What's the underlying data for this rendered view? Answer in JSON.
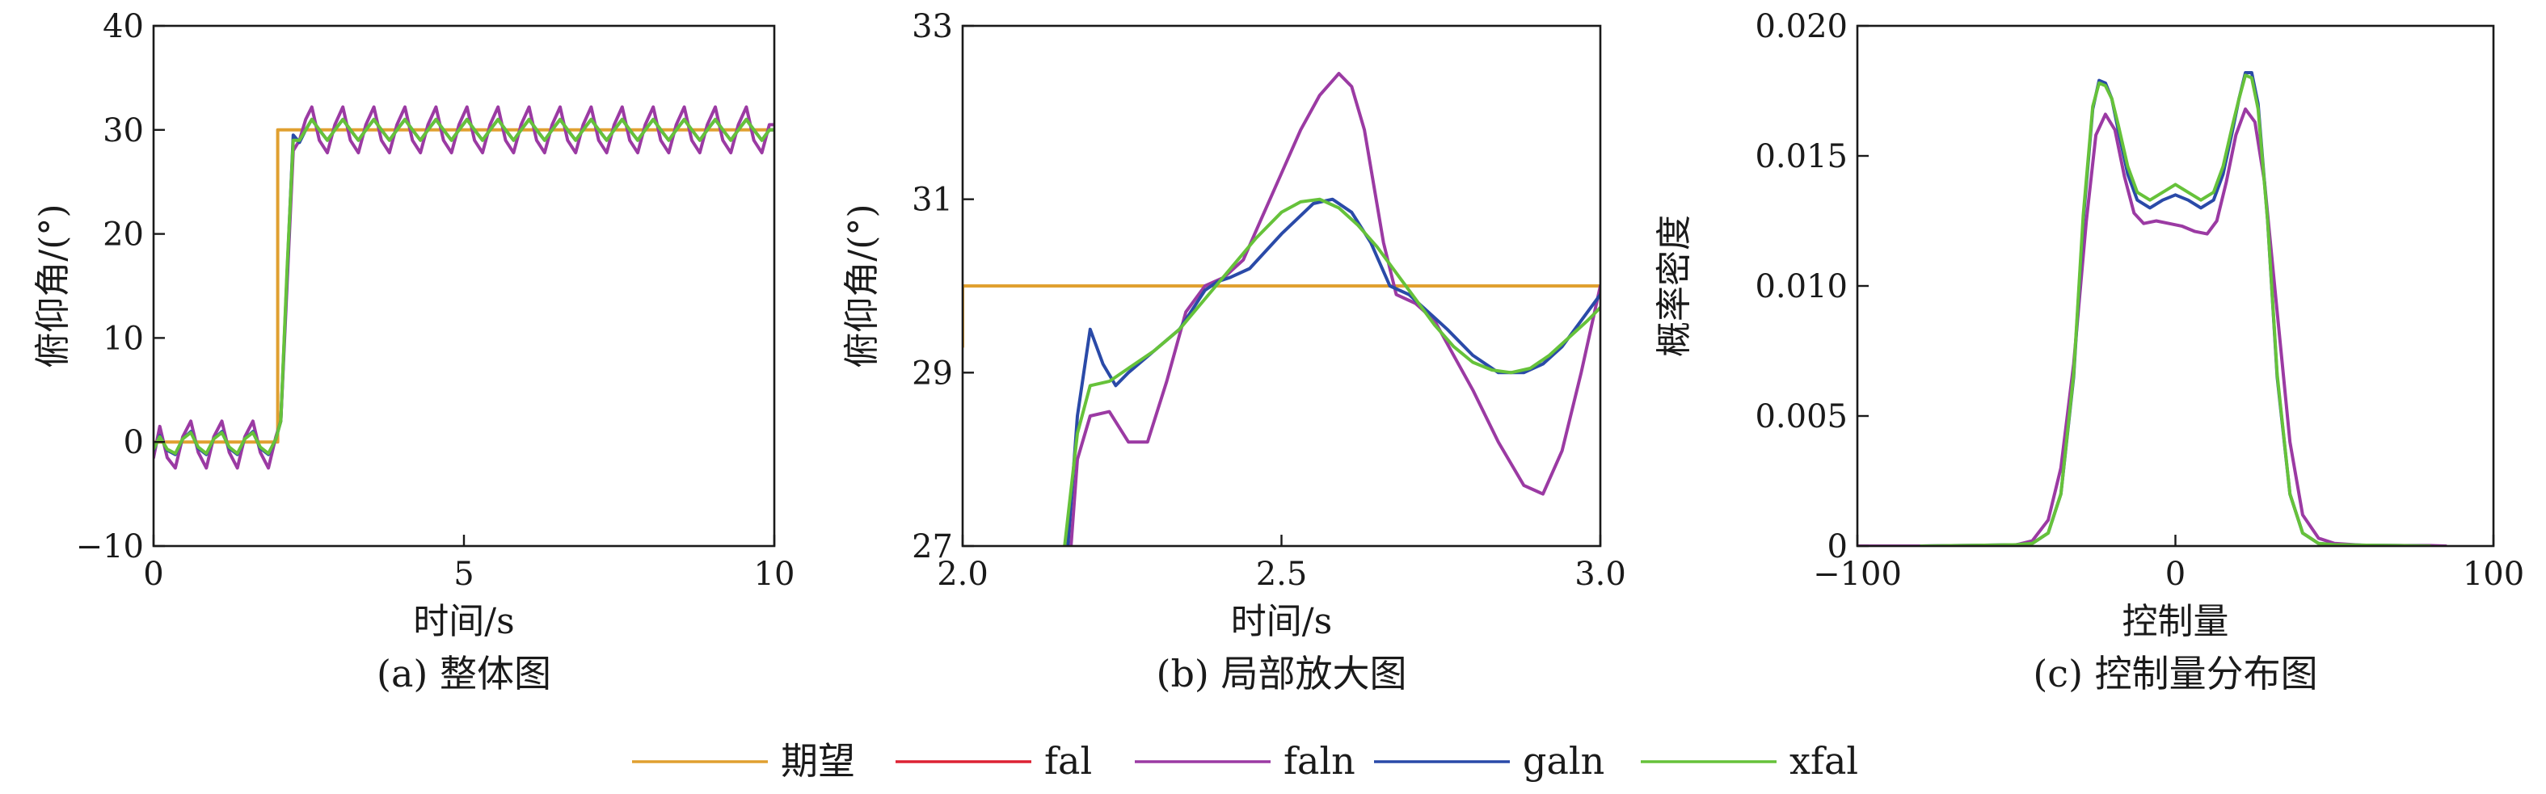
{
  "colors": {
    "期望": "#e0a030",
    "fal": "#dd2233",
    "faln": "#9b3aa3",
    "galn": "#2a4aa8",
    "xfal": "#66c23a"
  },
  "legend": {
    "placement": "bottom-center",
    "entries": [
      "期望",
      "fal",
      "faln",
      "galn",
      "xfal"
    ]
  },
  "chart_data": [
    {
      "id": "a",
      "type": "line",
      "caption": "(a) 整体图",
      "xlabel": "时间/s",
      "ylabel": "俯仰角/(°)",
      "xlim": [
        0,
        10
      ],
      "ylim": [
        -10,
        40
      ],
      "xticks": [
        0,
        5,
        10
      ],
      "yticks": [
        -10,
        0,
        10,
        20,
        30,
        40
      ],
      "xtick_labels": [
        "0",
        "5",
        "10"
      ],
      "ytick_labels": [
        "−10",
        "0",
        "10",
        "20",
        "30",
        "40"
      ],
      "series": [
        {
          "name": "期望",
          "x": [
            0,
            2,
            2,
            10
          ],
          "y": [
            0,
            0,
            30,
            30
          ]
        },
        {
          "name": "faln",
          "x": [
            0.0,
            0.1,
            0.22,
            0.35,
            0.47,
            0.6,
            0.72,
            0.85,
            0.97,
            1.1,
            1.22,
            1.35,
            1.47,
            1.6,
            1.72,
            1.85,
            1.97,
            2.05,
            2.15,
            2.25,
            2.35,
            2.45,
            2.55,
            2.67,
            2.8,
            2.92,
            3.05,
            3.17,
            3.3,
            3.42,
            3.55,
            3.67,
            3.8,
            3.92,
            4.05,
            4.17,
            4.3,
            4.42,
            4.55,
            4.67,
            4.8,
            4.92,
            5.05,
            5.17,
            5.3,
            5.42,
            5.55,
            5.67,
            5.8,
            5.92,
            6.05,
            6.17,
            6.3,
            6.42,
            6.55,
            6.67,
            6.8,
            6.92,
            7.05,
            7.17,
            7.3,
            7.42,
            7.55,
            7.67,
            7.8,
            7.92,
            8.05,
            8.17,
            8.3,
            8.42,
            8.55,
            8.67,
            8.8,
            8.92,
            9.05,
            9.17,
            9.3,
            9.42,
            9.55,
            9.67,
            9.8,
            9.92,
            10.0
          ],
          "y": [
            -1.5,
            1.5,
            -1.5,
            -2.5,
            0.5,
            2.0,
            -1.0,
            -2.5,
            0.5,
            2.0,
            -1.0,
            -2.5,
            0.5,
            2.0,
            -1.0,
            -2.5,
            0.5,
            2.0,
            15.0,
            28.0,
            29.0,
            31.0,
            32.2,
            29.0,
            27.8,
            30.5,
            32.2,
            29.0,
            27.8,
            30.5,
            32.2,
            29.0,
            27.8,
            30.5,
            32.2,
            29.0,
            27.8,
            30.5,
            32.2,
            29.0,
            27.8,
            30.5,
            32.2,
            29.0,
            27.8,
            30.5,
            32.2,
            29.0,
            27.8,
            30.5,
            32.2,
            29.0,
            27.8,
            30.5,
            32.2,
            29.0,
            27.8,
            30.5,
            32.2,
            29.0,
            27.8,
            30.5,
            32.2,
            29.0,
            27.8,
            30.5,
            32.2,
            29.0,
            27.8,
            30.5,
            32.2,
            29.0,
            27.8,
            30.5,
            32.2,
            29.0,
            27.8,
            30.5,
            32.2,
            29.0,
            27.8,
            30.5,
            30.5
          ]
        },
        {
          "name": "galn",
          "x": [
            0.0,
            0.1,
            0.22,
            0.35,
            0.47,
            0.6,
            0.72,
            0.85,
            0.97,
            1.1,
            1.22,
            1.35,
            1.47,
            1.6,
            1.72,
            1.85,
            1.97,
            2.05,
            2.15,
            2.25,
            2.35,
            2.45,
            2.55,
            2.67,
            2.8,
            2.92,
            3.05,
            3.17,
            3.3,
            3.42,
            3.55,
            3.67,
            3.8,
            3.92,
            4.05,
            4.17,
            4.3,
            4.42,
            4.55,
            4.67,
            4.8,
            4.92,
            5.05,
            5.17,
            5.3,
            5.42,
            5.55,
            5.67,
            5.8,
            5.92,
            6.05,
            6.17,
            6.3,
            6.42,
            6.55,
            6.67,
            6.8,
            6.92,
            7.05,
            7.17,
            7.3,
            7.42,
            7.55,
            7.67,
            7.8,
            7.92,
            8.05,
            8.17,
            8.3,
            8.42,
            8.55,
            8.67,
            8.8,
            8.92,
            9.05,
            9.17,
            9.3,
            9.42,
            9.55,
            9.67,
            9.8,
            9.92,
            10.0
          ],
          "y": [
            -0.8,
            0.6,
            -0.8,
            -1.2,
            0.3,
            1.0,
            -0.6,
            -1.2,
            0.3,
            1.0,
            -0.6,
            -1.2,
            0.3,
            1.0,
            -0.6,
            -1.2,
            0.3,
            2.0,
            16.0,
            29.5,
            28.8,
            30.0,
            31.0,
            30.0,
            29.0,
            30.0,
            31.0,
            30.0,
            29.0,
            30.0,
            31.0,
            30.0,
            29.0,
            30.0,
            31.0,
            30.0,
            29.0,
            30.0,
            31.0,
            30.0,
            29.0,
            30.0,
            31.0,
            30.0,
            29.0,
            30.0,
            31.0,
            30.0,
            29.0,
            30.0,
            31.0,
            30.0,
            29.0,
            30.0,
            31.0,
            30.0,
            29.0,
            30.0,
            31.0,
            30.0,
            29.0,
            30.0,
            31.0,
            30.0,
            29.0,
            30.0,
            31.0,
            30.0,
            29.0,
            30.0,
            31.0,
            30.0,
            29.0,
            30.0,
            31.0,
            30.0,
            29.0,
            30.0,
            31.0,
            30.0,
            29.0,
            30.0,
            30.0
          ]
        },
        {
          "name": "xfal",
          "x": [
            0.0,
            0.1,
            0.22,
            0.35,
            0.47,
            0.6,
            0.72,
            0.85,
            0.97,
            1.1,
            1.22,
            1.35,
            1.47,
            1.6,
            1.72,
            1.85,
            1.97,
            2.05,
            2.15,
            2.25,
            2.35,
            2.45,
            2.55,
            2.67,
            2.8,
            2.92,
            3.05,
            3.17,
            3.3,
            3.42,
            3.55,
            3.67,
            3.8,
            3.92,
            4.05,
            4.17,
            4.3,
            4.42,
            4.55,
            4.67,
            4.8,
            4.92,
            5.05,
            5.17,
            5.3,
            5.42,
            5.55,
            5.67,
            5.8,
            5.92,
            6.05,
            6.17,
            6.3,
            6.42,
            6.55,
            6.67,
            6.8,
            6.92,
            7.05,
            7.17,
            7.3,
            7.42,
            7.55,
            7.67,
            7.8,
            7.92,
            8.05,
            8.17,
            8.3,
            8.42,
            8.55,
            8.67,
            8.8,
            8.92,
            9.05,
            9.17,
            9.3,
            9.42,
            9.55,
            9.67,
            9.8,
            9.92,
            10.0
          ],
          "y": [
            -0.7,
            0.5,
            -0.7,
            -1.1,
            0.3,
            0.9,
            -0.5,
            -1.1,
            0.3,
            0.9,
            -0.5,
            -1.1,
            0.3,
            0.9,
            -0.5,
            -1.1,
            0.3,
            2.0,
            16.5,
            29.0,
            29.0,
            30.0,
            31.0,
            30.0,
            29.0,
            30.0,
            31.0,
            30.0,
            29.0,
            30.0,
            31.0,
            30.0,
            29.0,
            30.0,
            31.0,
            30.0,
            29.0,
            30.0,
            31.0,
            30.0,
            29.0,
            30.0,
            31.0,
            30.0,
            29.0,
            30.0,
            31.0,
            30.0,
            29.0,
            30.0,
            31.0,
            30.0,
            29.0,
            30.0,
            31.0,
            30.0,
            29.0,
            30.0,
            31.0,
            30.0,
            29.0,
            30.0,
            31.0,
            30.0,
            29.0,
            30.0,
            31.0,
            30.0,
            29.0,
            30.0,
            31.0,
            30.0,
            29.0,
            30.0,
            31.0,
            30.0,
            29.0,
            30.0,
            31.0,
            30.0,
            29.0,
            30.0,
            30.0
          ]
        }
      ]
    },
    {
      "id": "b",
      "type": "line",
      "caption": "(b) 局部放大图",
      "xlabel": "时间/s",
      "ylabel": "俯仰角/(°)",
      "xlim": [
        2.0,
        3.0
      ],
      "ylim": [
        27,
        33
      ],
      "xticks": [
        2.0,
        2.5,
        3.0
      ],
      "yticks": [
        27,
        29,
        31,
        33
      ],
      "xtick_labels": [
        "2.0",
        "2.5",
        "3.0"
      ],
      "ytick_labels": [
        "27",
        "29",
        "31",
        "33"
      ],
      "series": [
        {
          "name": "期望",
          "x": [
            2.0,
            2.0,
            3.0
          ],
          "y": [
            29.3,
            30.0,
            30.0
          ]
        },
        {
          "name": "faln",
          "x": [
            2.17,
            2.18,
            2.2,
            2.23,
            2.26,
            2.29,
            2.32,
            2.35,
            2.38,
            2.41,
            2.44,
            2.47,
            2.5,
            2.53,
            2.56,
            2.59,
            2.61,
            2.63,
            2.66,
            2.68,
            2.71,
            2.74,
            2.77,
            2.8,
            2.84,
            2.88,
            2.91,
            2.94,
            2.97,
            3.0
          ],
          "y": [
            27.0,
            28.0,
            28.5,
            28.55,
            28.2,
            28.2,
            28.9,
            29.7,
            30.0,
            30.1,
            30.3,
            30.8,
            31.3,
            31.8,
            32.2,
            32.45,
            32.3,
            31.8,
            30.5,
            29.9,
            29.8,
            29.6,
            29.2,
            28.8,
            28.2,
            27.7,
            27.6,
            28.1,
            29.0,
            30.0
          ]
        },
        {
          "name": "galn",
          "x": [
            2.165,
            2.18,
            2.2,
            2.22,
            2.24,
            2.26,
            2.3,
            2.34,
            2.38,
            2.4,
            2.42,
            2.45,
            2.5,
            2.55,
            2.58,
            2.61,
            2.64,
            2.67,
            2.7,
            2.73,
            2.76,
            2.8,
            2.84,
            2.88,
            2.91,
            2.94,
            2.97,
            3.0
          ],
          "y": [
            27.0,
            28.5,
            29.5,
            29.1,
            28.85,
            29.0,
            29.25,
            29.5,
            29.95,
            30.05,
            30.1,
            30.2,
            30.6,
            30.95,
            31.0,
            30.85,
            30.5,
            30.0,
            29.9,
            29.7,
            29.5,
            29.2,
            29.0,
            29.0,
            29.1,
            29.3,
            29.6,
            29.9
          ]
        },
        {
          "name": "xfal",
          "x": [
            2.16,
            2.18,
            2.2,
            2.23,
            2.26,
            2.3,
            2.34,
            2.38,
            2.42,
            2.46,
            2.5,
            2.53,
            2.56,
            2.59,
            2.62,
            2.65,
            2.68,
            2.71,
            2.74,
            2.77,
            2.8,
            2.83,
            2.86,
            2.89,
            2.92,
            2.95,
            2.98,
            3.0
          ],
          "y": [
            27.0,
            28.3,
            28.85,
            28.9,
            29.05,
            29.25,
            29.5,
            29.85,
            30.2,
            30.55,
            30.85,
            30.97,
            31.0,
            30.9,
            30.7,
            30.45,
            30.15,
            29.85,
            29.55,
            29.3,
            29.12,
            29.03,
            29.0,
            29.05,
            29.2,
            29.4,
            29.6,
            29.75
          ]
        }
      ]
    },
    {
      "id": "c",
      "type": "line",
      "caption": "(c) 控制量分布图",
      "xlabel": "控制量",
      "ylabel": "概率密度",
      "xlim": [
        -100,
        100
      ],
      "ylim": [
        0,
        0.02
      ],
      "xticks": [
        -100,
        0,
        100
      ],
      "yticks": [
        0,
        0.005,
        0.01,
        0.015,
        0.02
      ],
      "xtick_labels": [
        "−100",
        "0",
        "100"
      ],
      "ytick_labels": [
        "0",
        "0.005",
        "0.010",
        "0.015",
        "0.020"
      ],
      "series": [
        {
          "name": "faln",
          "x": [
            -100,
            -80,
            -60,
            -50,
            -45,
            -40,
            -36,
            -32,
            -28,
            -25,
            -22,
            -19,
            -16,
            -13,
            -10,
            -6,
            -2,
            2,
            6,
            10,
            13,
            16,
            19,
            22,
            25,
            28,
            32,
            36,
            40,
            45,
            50,
            60,
            70,
            80,
            85
          ],
          "y": [
            0,
            0,
            2e-05,
            5e-05,
            0.0002,
            0.001,
            0.003,
            0.007,
            0.0125,
            0.0158,
            0.0166,
            0.016,
            0.0142,
            0.0128,
            0.0124,
            0.0125,
            0.0124,
            0.0123,
            0.0121,
            0.012,
            0.0125,
            0.014,
            0.0158,
            0.0168,
            0.0163,
            0.014,
            0.009,
            0.004,
            0.0012,
            0.0003,
            0.0001,
            2e-05,
            2e-05,
            2e-05,
            0
          ]
        },
        {
          "name": "galn",
          "x": [
            -80,
            -60,
            -50,
            -45,
            -40,
            -36,
            -32,
            -29,
            -26,
            -24,
            -22,
            -20,
            -18,
            -15,
            -12,
            -8,
            -4,
            0,
            4,
            8,
            12,
            15,
            18,
            20,
            22,
            24,
            26,
            29,
            32,
            36,
            40,
            45,
            50,
            60,
            70,
            80
          ],
          "y": [
            0,
            3e-05,
            5e-05,
            0.0001,
            0.0005,
            0.002,
            0.0065,
            0.0125,
            0.0168,
            0.0179,
            0.0178,
            0.0172,
            0.016,
            0.0143,
            0.0133,
            0.013,
            0.0133,
            0.0135,
            0.0133,
            0.013,
            0.0133,
            0.0143,
            0.016,
            0.0172,
            0.0182,
            0.0182,
            0.017,
            0.0125,
            0.0065,
            0.002,
            0.0005,
            0.0001,
            5e-05,
            3e-05,
            2e-05,
            0
          ]
        },
        {
          "name": "xfal",
          "x": [
            -80,
            -60,
            -50,
            -45,
            -40,
            -36,
            -32,
            -29,
            -26,
            -24,
            -22,
            -20,
            -18,
            -15,
            -12,
            -8,
            -4,
            0,
            4,
            8,
            12,
            15,
            18,
            20,
            22,
            24,
            26,
            29,
            32,
            36,
            40,
            45,
            50,
            60,
            70,
            80
          ],
          "y": [
            0,
            3e-05,
            5e-05,
            0.0001,
            0.0005,
            0.002,
            0.0066,
            0.0127,
            0.0169,
            0.0178,
            0.0177,
            0.0172,
            0.0162,
            0.0146,
            0.0136,
            0.0133,
            0.0136,
            0.0139,
            0.0136,
            0.0133,
            0.0136,
            0.0146,
            0.0162,
            0.0172,
            0.0181,
            0.018,
            0.0168,
            0.0125,
            0.0066,
            0.002,
            0.0005,
            0.0001,
            5e-05,
            3e-05,
            2e-05,
            0
          ]
        }
      ]
    }
  ]
}
